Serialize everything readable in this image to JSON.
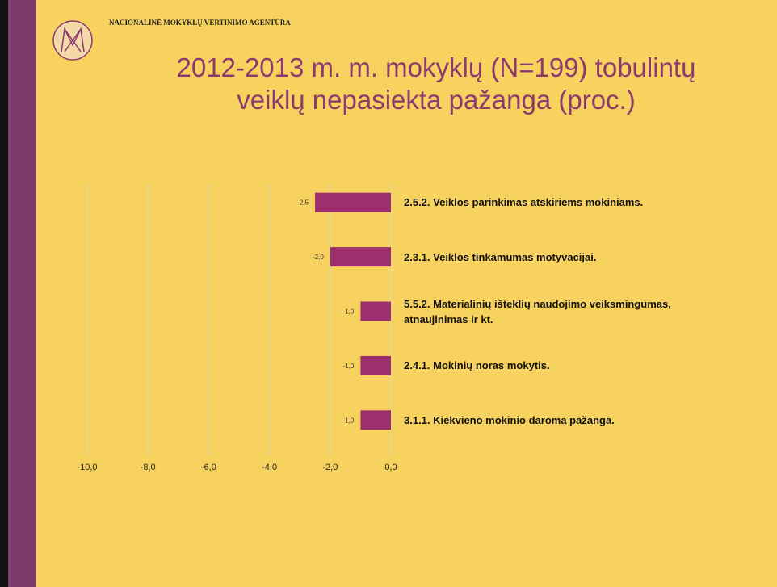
{
  "header": {
    "organization": "NACIONALINĖ MOKYKLŲ VERTINIMO AGENTŪRA"
  },
  "chart_data": {
    "type": "barh",
    "title": "2012-2013 m. m. mokyklų (N=199) tobulintų veiklų nepasiekta pažanga (proc.)",
    "categories": [
      "2.5.2. Veiklos parinkimas atskiriems mokiniams.",
      "2.3.1. Veiklos tinkamumas  motyvacijai.",
      "5.5.2. Materialinių išteklių naudojimo veiksmingumas, atnaujinimas ir kt.",
      "2.4.1. Mokinių noras mokytis.",
      "3.1.1. Kiekvieno mokinio daroma pažanga."
    ],
    "values": [
      -2.5,
      -2.0,
      -1.0,
      -1.0,
      -1.0
    ],
    "value_labels": [
      "-2,5",
      "-2,0",
      "-1,0",
      "-1,0",
      "-1,0"
    ],
    "color": "#9c2f6c",
    "xlim": [
      -10,
      0
    ],
    "xticks": [
      {
        "value": -10,
        "label": "-10,0"
      },
      {
        "value": -8,
        "label": "-8,0"
      },
      {
        "value": -6,
        "label": "-6,0"
      },
      {
        "value": -4,
        "label": "-4,0"
      },
      {
        "value": -2,
        "label": "-2,0"
      },
      {
        "value": 0,
        "label": "0,0"
      }
    ],
    "grid": true
  }
}
